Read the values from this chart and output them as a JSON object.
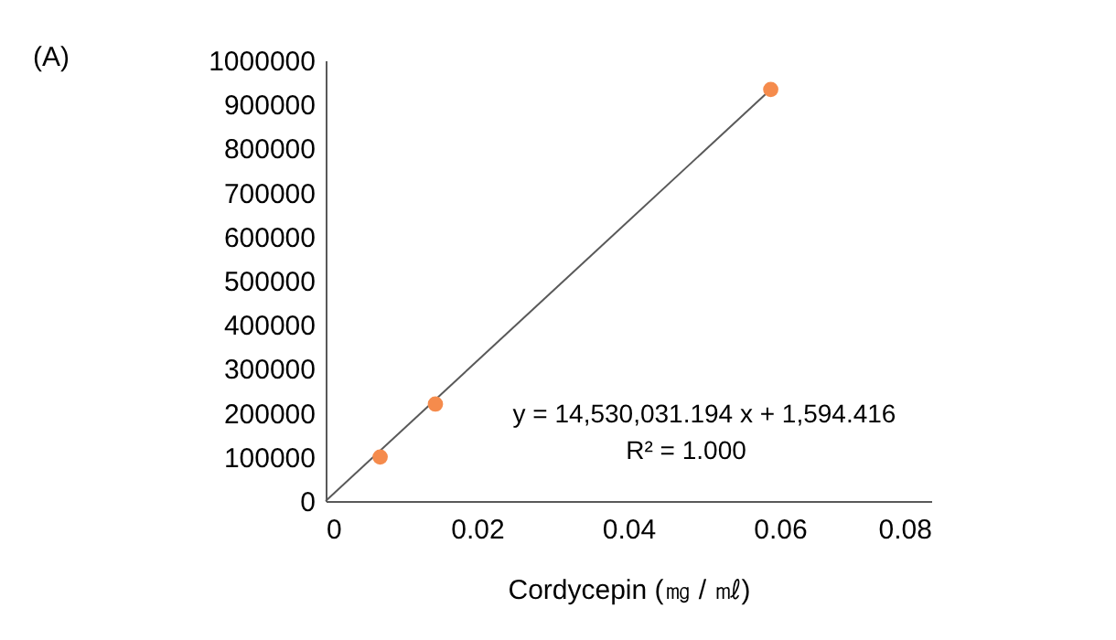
{
  "chart_data": {
    "type": "scatter",
    "xlabel": "Cordycepin (㎎ / ㎖)",
    "x": [
      0.0072,
      0.0145,
      0.0588
    ],
    "series": [
      {
        "color": "#f58b4c",
        "values": [
          100000,
          220000,
          934000
        ],
        "marker": "circle"
      },
      {
        "type": "line",
        "color": "#595959",
        "x": [
          0,
          0.0588
        ],
        "values": [
          0,
          934000
        ],
        "marker": "none"
      }
    ],
    "xlim": [
      0,
      0.08
    ],
    "xticks": [
      0,
      0.02,
      0.04,
      0.06,
      0.08
    ],
    "ylim": [
      0,
      1000000
    ],
    "yticks": [
      0,
      100000,
      200000,
      300000,
      400000,
      500000,
      600000,
      700000,
      800000,
      900000,
      1000000
    ],
    "annotations": [
      "(A)",
      "y = 14,530,031.194 x + 1,594.416",
      "R² = 1.000"
    ]
  }
}
